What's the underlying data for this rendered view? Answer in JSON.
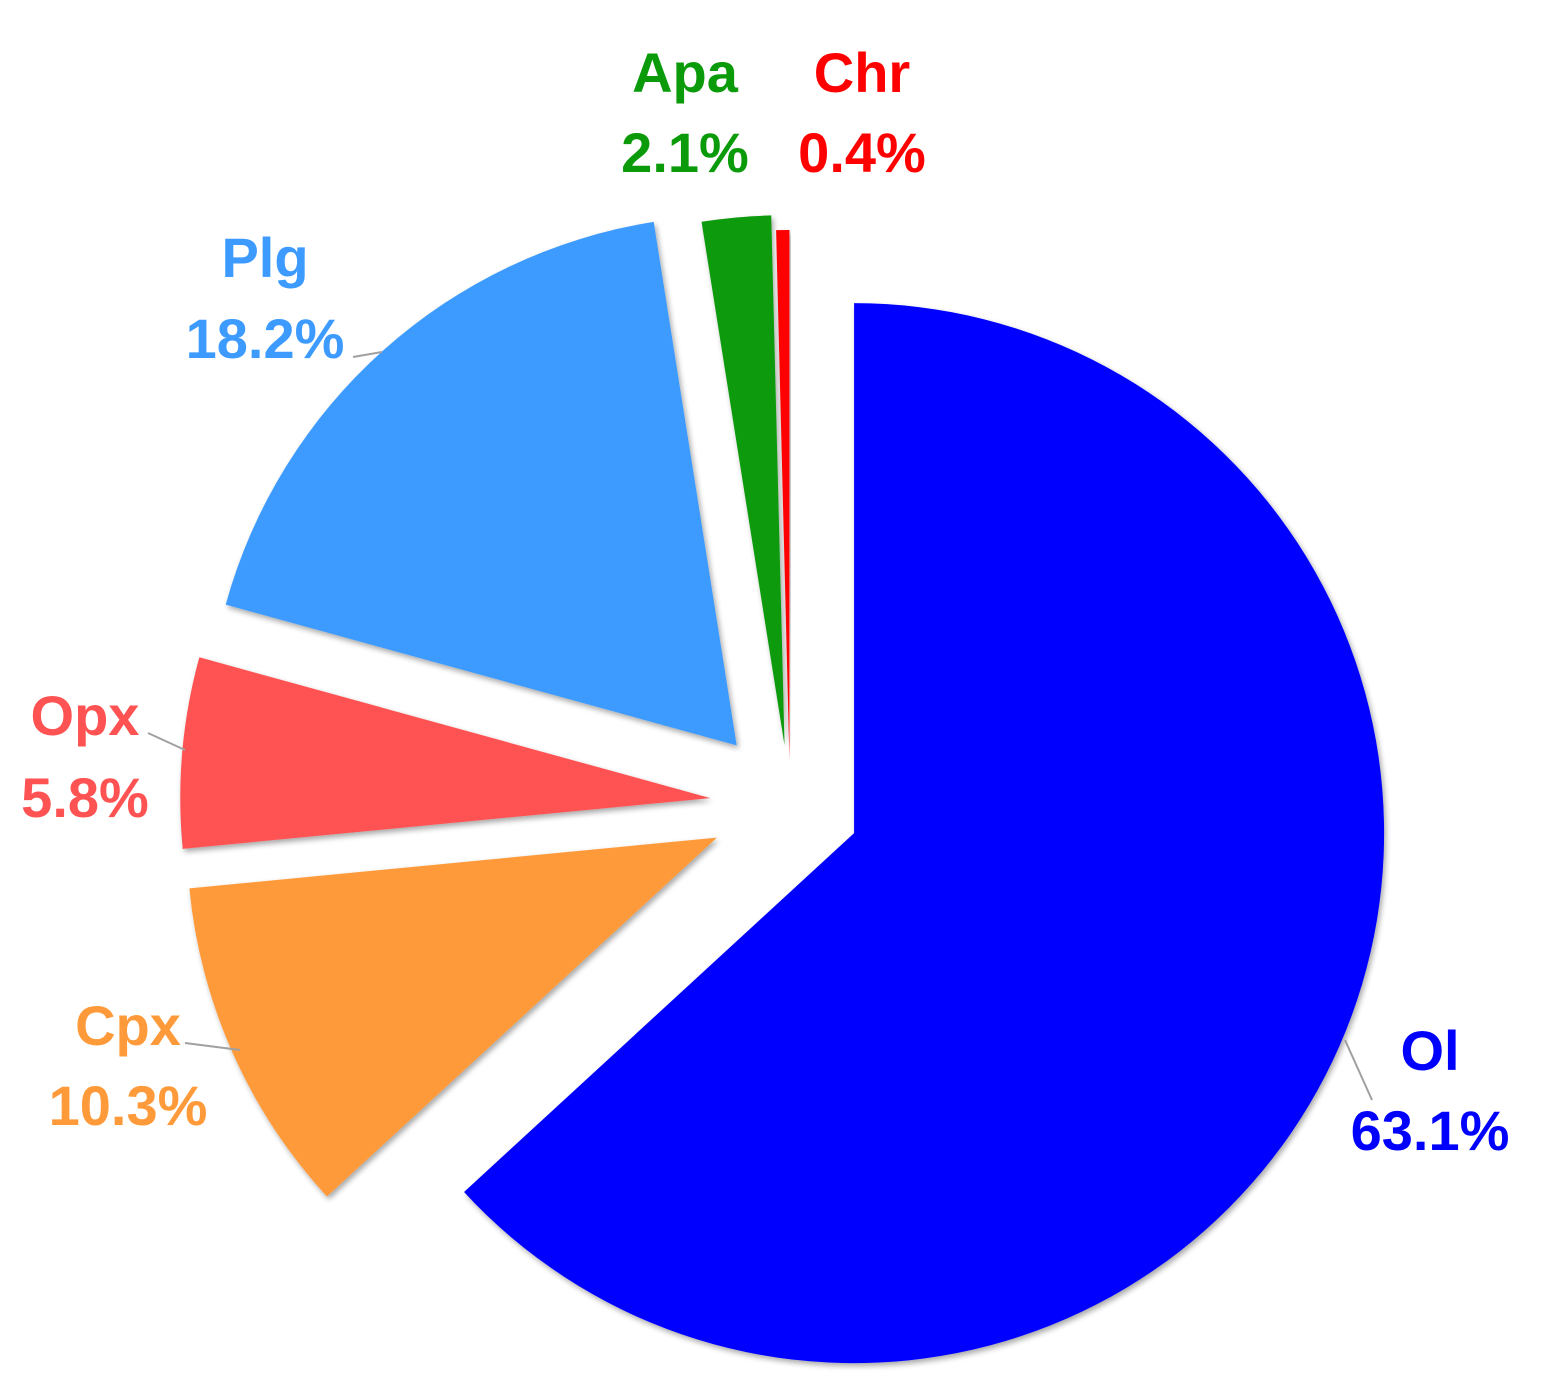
{
  "chart_data": {
    "type": "pie",
    "start_angle_deg": 0,
    "direction": "clockwise",
    "exploded": true,
    "slices": [
      {
        "label": "Ol",
        "value": 63.1,
        "value_label": "63.1%",
        "color": "#0000ff"
      },
      {
        "label": "Cpx",
        "value": 10.3,
        "value_label": "10.3%",
        "color": "#ff9a3a"
      },
      {
        "label": "Opx",
        "value": 5.8,
        "value_label": "5.8%",
        "color": "#ff5252"
      },
      {
        "label": "Plg",
        "value": 18.2,
        "value_label": "18.2%",
        "color": "#3d9bff"
      },
      {
        "label": "Apa",
        "value": 2.1,
        "value_label": "2.1%",
        "color": "#0a9a0a"
      },
      {
        "label": "Chr",
        "value": 0.4,
        "value_label": "0.4%",
        "color": "#ff0000"
      }
    ],
    "leader_line_color": "#a0a0a0"
  }
}
